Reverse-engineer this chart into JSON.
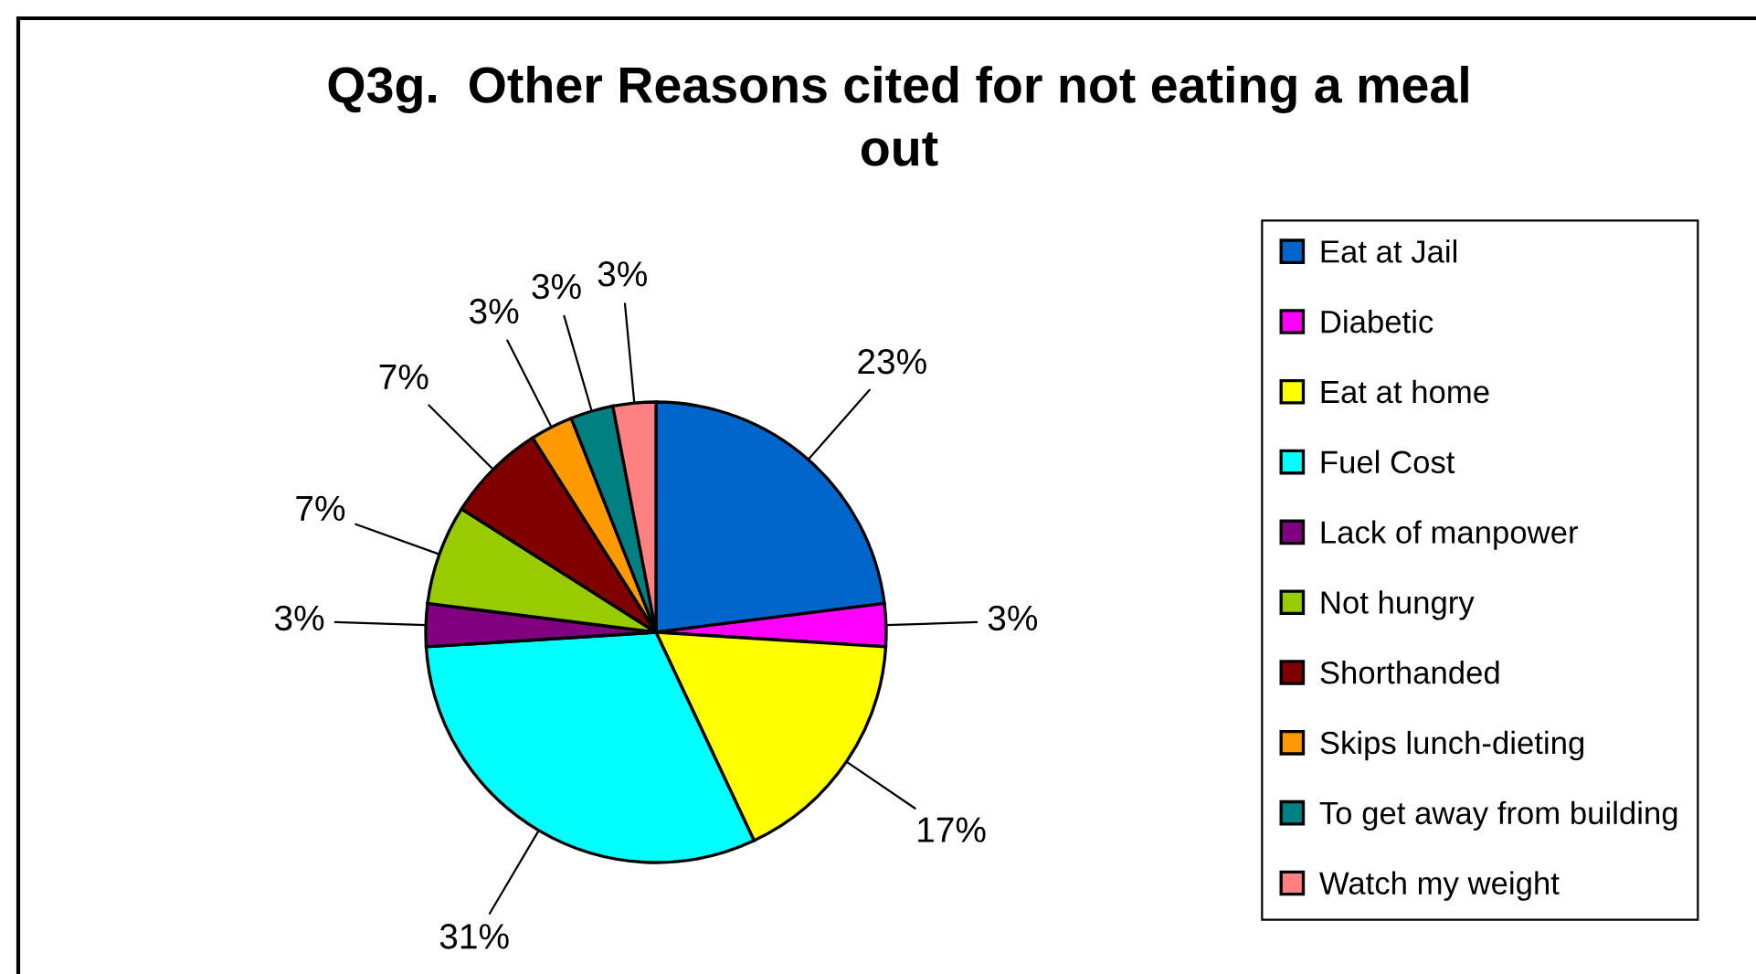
{
  "chart_data": {
    "type": "pie",
    "title": "Q3g.  Other Reasons cited for not eating a meal\nout",
    "categories": [
      "Eat at Jail",
      "Diabetic",
      "Eat at home",
      "Fuel Cost",
      "Lack of manpower",
      "Not hungry",
      "Shorthanded",
      "Skips lunch-dieting",
      "To get away from building",
      "Watch my weight"
    ],
    "values": [
      23,
      3,
      17,
      31,
      3,
      7,
      7,
      3,
      3,
      3
    ],
    "colors": [
      "#0066cc",
      "#ff00ff",
      "#ffff00",
      "#00ffff",
      "#800080",
      "#99cc00",
      "#800000",
      "#ff9900",
      "#008080",
      "#ff8080"
    ],
    "value_labels": [
      "23%",
      "3%",
      "17%",
      "31%",
      "3%",
      "7%",
      "7%",
      "3%",
      "3%",
      "3%"
    ],
    "legend": "right"
  }
}
